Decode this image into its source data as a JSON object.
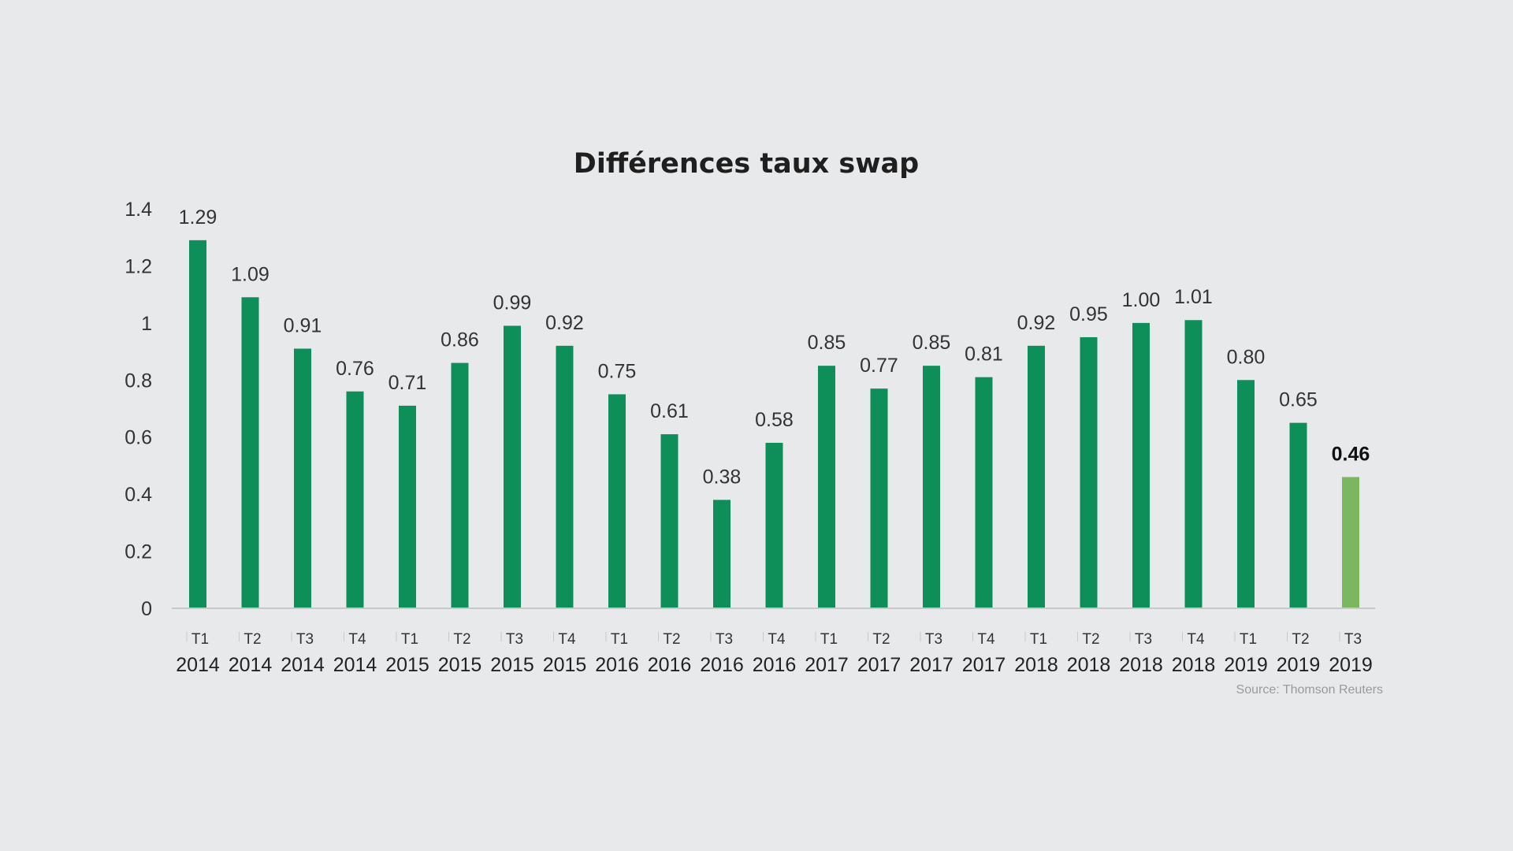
{
  "chart_data": {
    "type": "bar",
    "title": "Différences taux swap",
    "xlabel": "",
    "ylabel": "",
    "ylim": [
      0,
      1.4
    ],
    "yticks": [
      "0",
      "0.2",
      "0.4",
      "0.6",
      "0.8",
      "1",
      "1.2",
      "1.4"
    ],
    "ytick_values": [
      0,
      0.2,
      0.4,
      0.6,
      0.8,
      1,
      1.2,
      1.4
    ],
    "categories": [
      {
        "quarter": "T1",
        "year": "2014"
      },
      {
        "quarter": "T2",
        "year": "2014"
      },
      {
        "quarter": "T3",
        "year": "2014"
      },
      {
        "quarter": "T4",
        "year": "2014"
      },
      {
        "quarter": "T1",
        "year": "2015"
      },
      {
        "quarter": "T2",
        "year": "2015"
      },
      {
        "quarter": "T3",
        "year": "2015"
      },
      {
        "quarter": "T4",
        "year": "2015"
      },
      {
        "quarter": "T1",
        "year": "2016"
      },
      {
        "quarter": "T2",
        "year": "2016"
      },
      {
        "quarter": "T3",
        "year": "2016"
      },
      {
        "quarter": "T4",
        "year": "2016"
      },
      {
        "quarter": "T1",
        "year": "2017"
      },
      {
        "quarter": "T2",
        "year": "2017"
      },
      {
        "quarter": "T3",
        "year": "2017"
      },
      {
        "quarter": "T4",
        "year": "2017"
      },
      {
        "quarter": "T1",
        "year": "2018"
      },
      {
        "quarter": "T2",
        "year": "2018"
      },
      {
        "quarter": "T3",
        "year": "2018"
      },
      {
        "quarter": "T4",
        "year": "2018"
      },
      {
        "quarter": "T1",
        "year": "2019"
      },
      {
        "quarter": "T2",
        "year": "2019"
      },
      {
        "quarter": "T3",
        "year": "2019"
      }
    ],
    "values": [
      1.29,
      1.09,
      0.91,
      0.76,
      0.71,
      0.86,
      0.99,
      0.92,
      0.75,
      0.61,
      0.38,
      0.58,
      0.85,
      0.77,
      0.85,
      0.81,
      0.92,
      0.95,
      1.0,
      1.01,
      0.8,
      0.65,
      0.46
    ],
    "value_labels": [
      "1.29",
      "1.09",
      "0.91",
      "0.76",
      "0.71",
      "0.86",
      "0.99",
      "0.92",
      "0.75",
      "0.61",
      "0.38",
      "0.58",
      "0.85",
      "0.77",
      "0.85",
      "0.81",
      "0.92",
      "0.95",
      "1.00",
      "1.01",
      "0.80",
      "0.65",
      "0.46"
    ],
    "highlight_index": 22,
    "legend": "none",
    "grid": false
  },
  "colors": {
    "bar": "#0e8f5a",
    "bar_highlight": "#7bb661",
    "axis": "#c8c8c8",
    "background": "#e8e9eb"
  },
  "source": "Source: Thomson Reuters"
}
